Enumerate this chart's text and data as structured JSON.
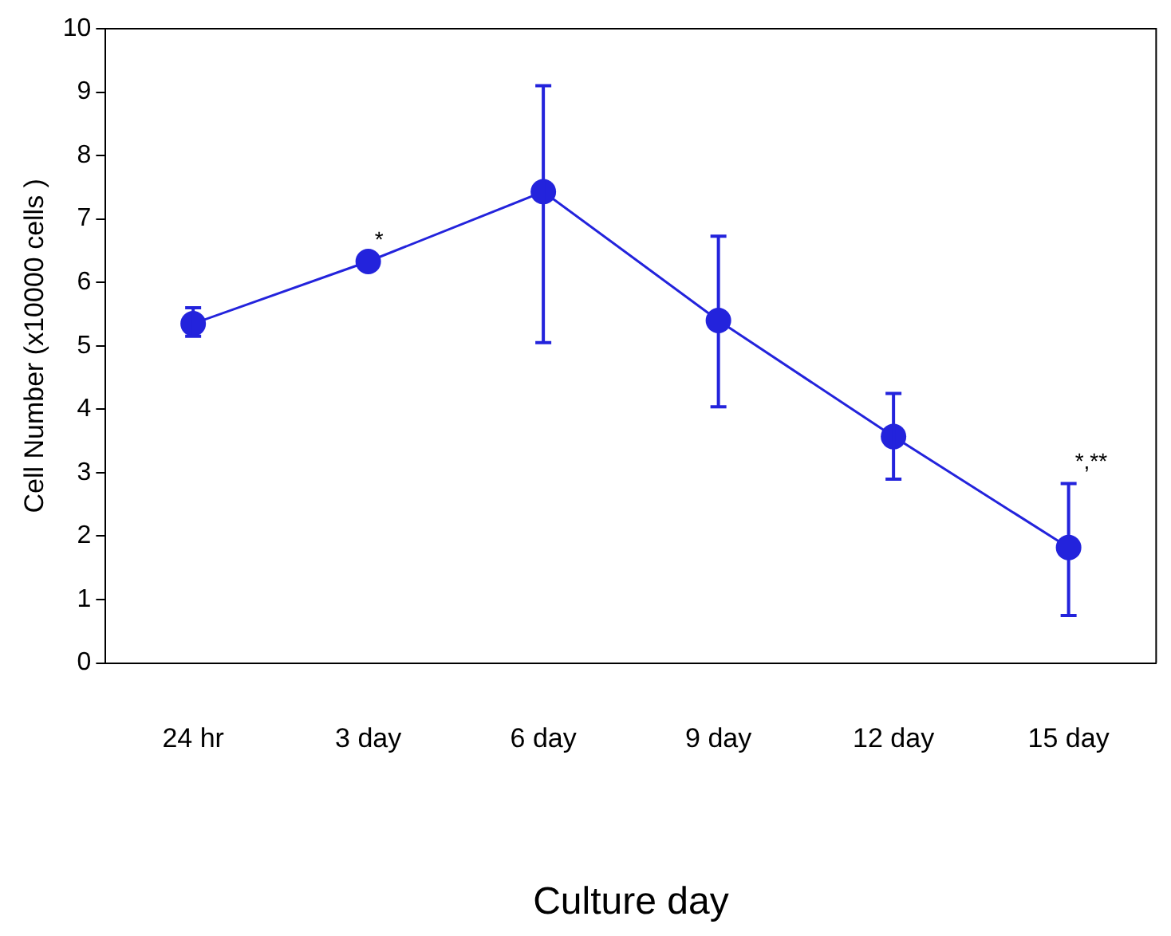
{
  "chart_data": {
    "type": "line",
    "xlabel": "Culture day",
    "ylabel": "Cell Number (x10000 cells )",
    "categories": [
      "24 hr",
      "3 day",
      "6 day",
      "9 day",
      "12 day",
      "15 day"
    ],
    "series": [
      {
        "color": "#2323dc",
        "values": [
          5.35,
          6.33,
          7.43,
          5.4,
          3.57,
          1.82
        ],
        "errors": [
          [
            5.15,
            5.6
          ],
          null,
          [
            5.05,
            9.1
          ],
          [
            4.04,
            6.73
          ],
          [
            2.9,
            4.25
          ],
          [
            0.75,
            2.83
          ]
        ]
      }
    ],
    "ylim": [
      0,
      10
    ],
    "yticks": [
      0,
      1,
      2,
      3,
      4,
      5,
      6,
      7,
      8,
      9,
      10
    ],
    "grid": false,
    "legend": false,
    "marker": "circle",
    "line_style": "solid",
    "annotations": [
      {
        "text": "*",
        "x": "3 day",
        "y": 6.33
      },
      {
        "text": "*,**",
        "x": "15 day",
        "y": 2.83
      }
    ]
  }
}
